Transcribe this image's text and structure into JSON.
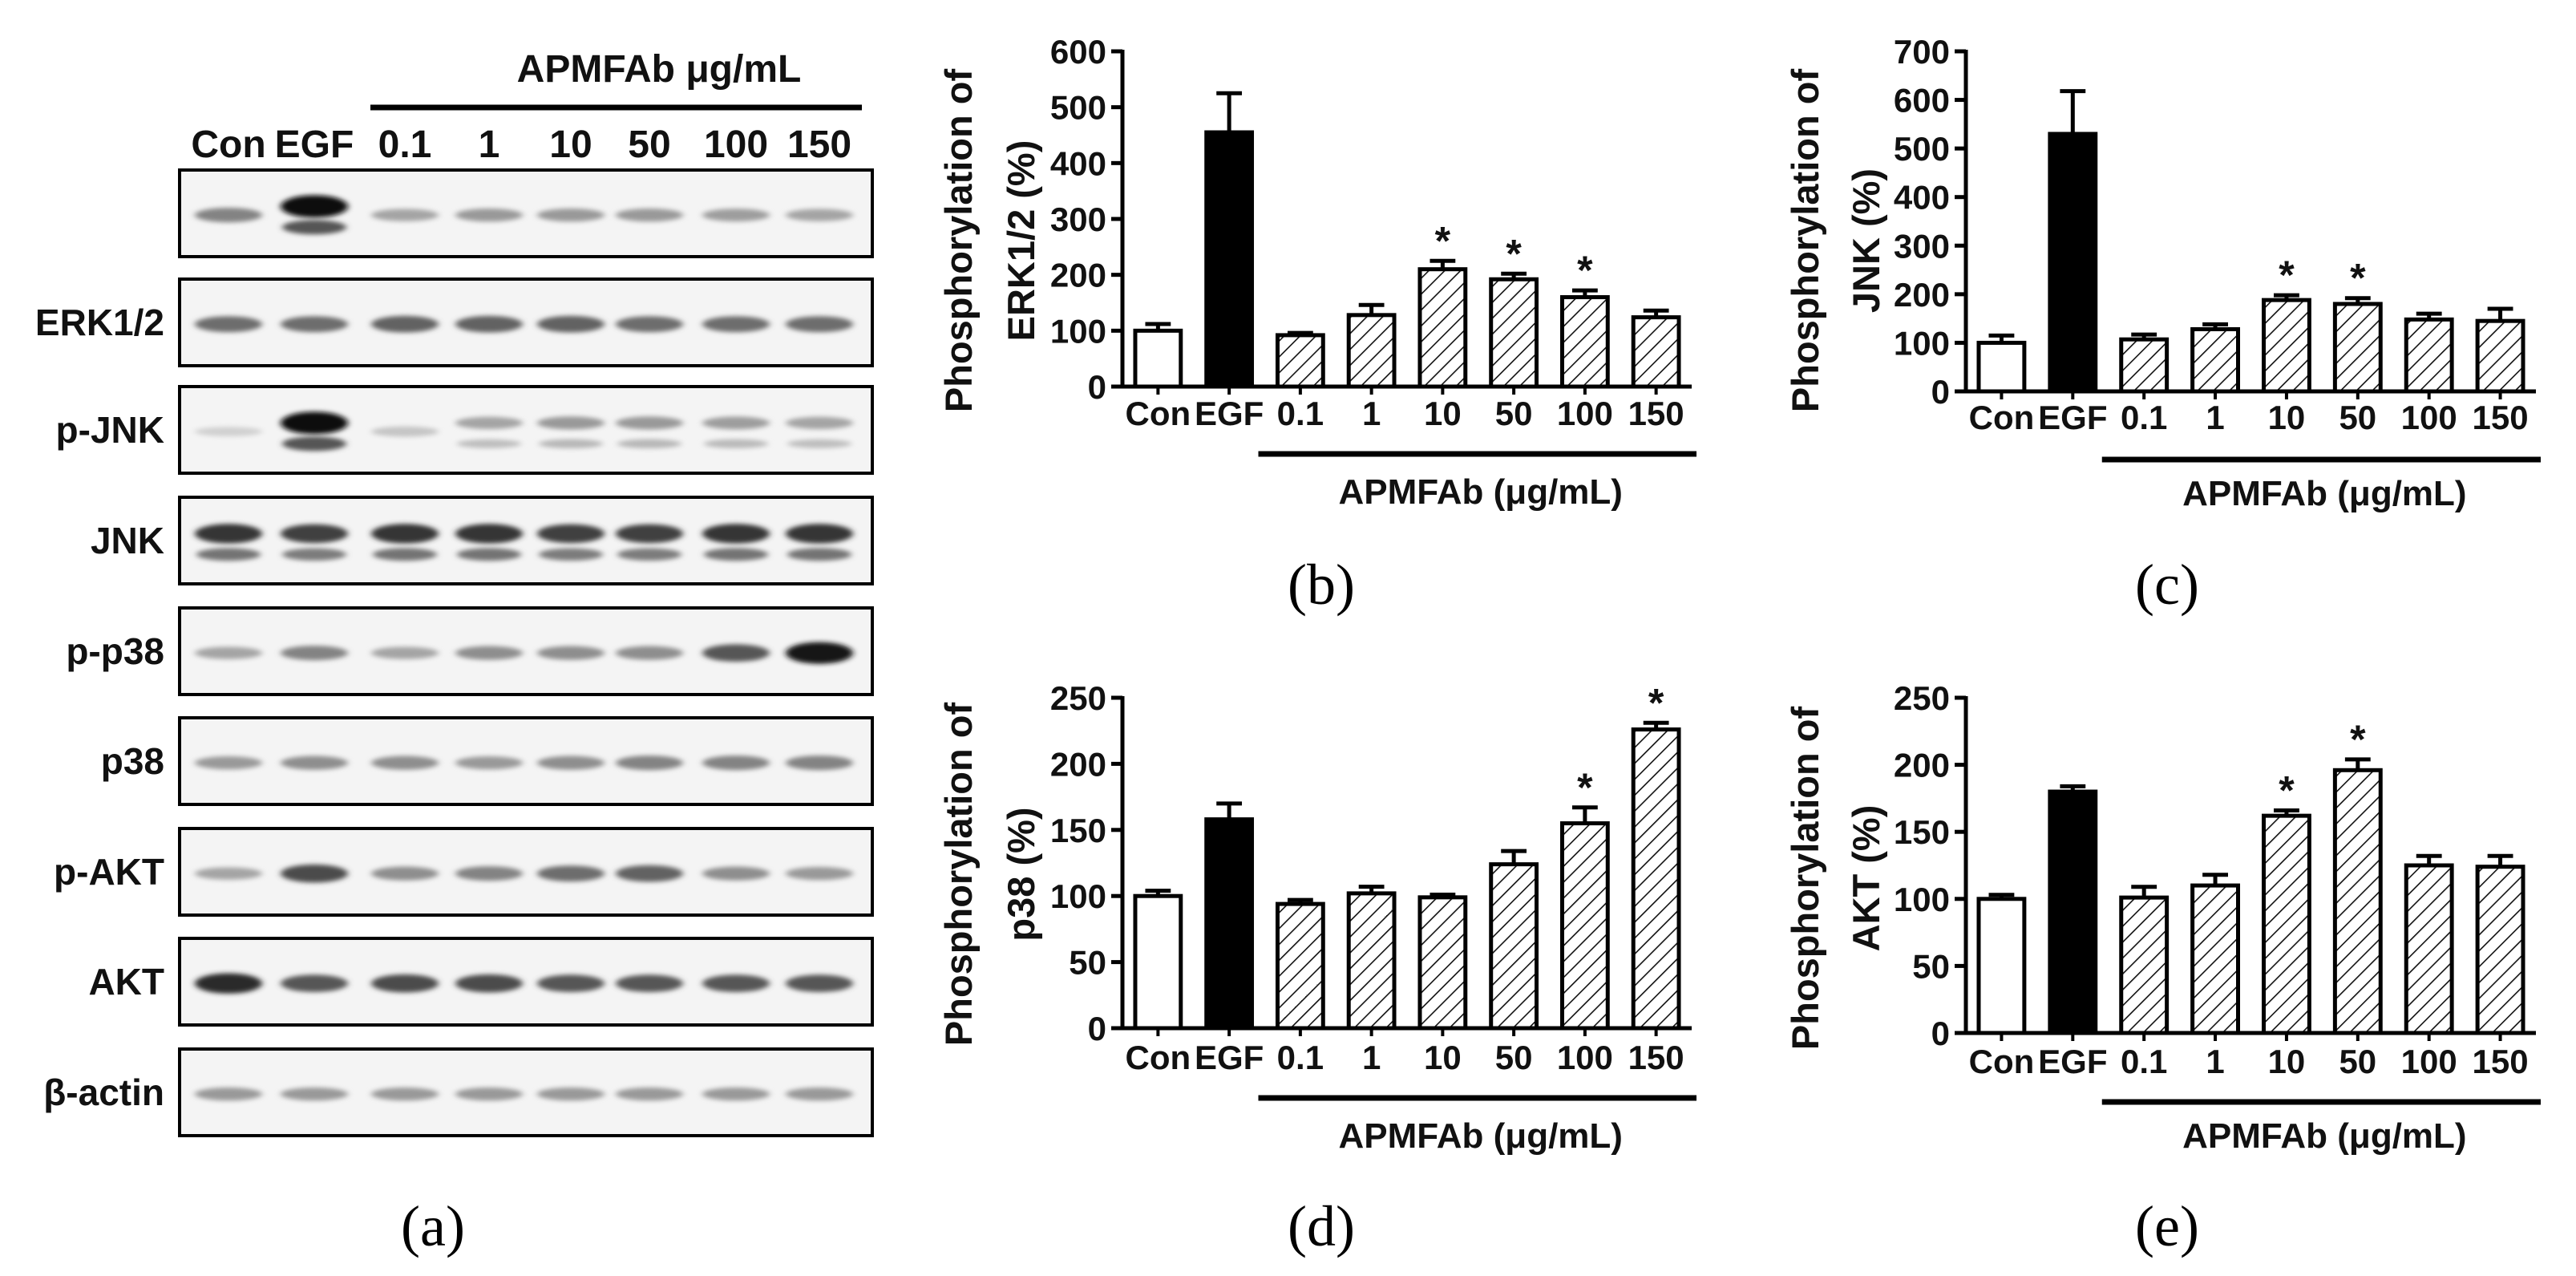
{
  "blot": {
    "header": "APMFAb μg/mL",
    "lanes": [
      "Con",
      "EGF",
      "0.1",
      "1",
      "10",
      "50",
      "100",
      "150"
    ],
    "rows": [
      {
        "label": "",
        "intensity": [
          0.45,
          1.0,
          0.3,
          0.35,
          0.35,
          0.35,
          0.33,
          0.3
        ],
        "double": [
          0,
          1,
          0,
          0,
          0,
          0,
          0,
          0
        ]
      },
      {
        "label": "ERK1/2",
        "intensity": [
          0.55,
          0.55,
          0.6,
          0.6,
          0.6,
          0.55,
          0.55,
          0.55
        ],
        "double": [
          0,
          0,
          0,
          0,
          0,
          0,
          0,
          0
        ]
      },
      {
        "label": "p-JNK",
        "intensity": [
          0.1,
          1.0,
          0.15,
          0.3,
          0.35,
          0.35,
          0.33,
          0.3
        ],
        "double": [
          0,
          1,
          0,
          1,
          1,
          1,
          1,
          1
        ]
      },
      {
        "label": "JNK",
        "intensity": [
          0.8,
          0.75,
          0.8,
          0.8,
          0.75,
          0.75,
          0.8,
          0.8
        ],
        "double": [
          1,
          1,
          1,
          1,
          1,
          1,
          1,
          1
        ]
      },
      {
        "label": "p-p38",
        "intensity": [
          0.3,
          0.45,
          0.3,
          0.4,
          0.4,
          0.4,
          0.65,
          0.95
        ],
        "double": [
          0,
          0,
          0,
          0,
          0,
          0,
          0,
          0
        ]
      },
      {
        "label": "p38",
        "intensity": [
          0.35,
          0.4,
          0.4,
          0.35,
          0.4,
          0.45,
          0.45,
          0.45
        ],
        "double": [
          0,
          0,
          0,
          0,
          0,
          0,
          0,
          0
        ]
      },
      {
        "label": "p-AKT",
        "intensity": [
          0.3,
          0.7,
          0.4,
          0.45,
          0.55,
          0.6,
          0.4,
          0.35
        ],
        "double": [
          0,
          0,
          0,
          0,
          0,
          0,
          0,
          0
        ]
      },
      {
        "label": "AKT",
        "intensity": [
          0.85,
          0.65,
          0.7,
          0.7,
          0.65,
          0.65,
          0.65,
          0.65
        ],
        "double": [
          0,
          0,
          0,
          0,
          0,
          0,
          0,
          0
        ]
      },
      {
        "label": "β-actin",
        "intensity": [
          0.35,
          0.35,
          0.35,
          0.35,
          0.35,
          0.35,
          0.35,
          0.35
        ],
        "double": [
          0,
          0,
          0,
          0,
          0,
          0,
          0,
          0
        ]
      }
    ]
  },
  "panel_labels": {
    "a": "(a)",
    "b": "(b)",
    "c": "(c)",
    "d": "(d)",
    "e": "(e)"
  },
  "chart_data": [
    {
      "id": "b",
      "type": "bar",
      "ylabel_line1": "Phosphorylation of",
      "ylabel_line2": "ERK1/2 (%)",
      "categories": [
        "Con",
        "EGF",
        "0.1",
        "1",
        "10",
        "50",
        "100",
        "150"
      ],
      "values": [
        100,
        455,
        92,
        128,
        210,
        192,
        160,
        124
      ],
      "errors": [
        12,
        70,
        4,
        18,
        15,
        10,
        12,
        12
      ],
      "significant": [
        false,
        false,
        false,
        false,
        true,
        true,
        true,
        false
      ],
      "star": "*",
      "fills": [
        "white",
        "black",
        "hatch",
        "hatch",
        "hatch",
        "hatch",
        "hatch",
        "hatch"
      ],
      "xgroup_label": "APMFAb (μg/mL)",
      "ylim": [
        0,
        600
      ],
      "yticks": [
        0,
        100,
        200,
        300,
        400,
        500,
        600
      ]
    },
    {
      "id": "c",
      "type": "bar",
      "ylabel_line1": "Phosphorylation of",
      "ylabel_line2": "JNK (%)",
      "categories": [
        "Con",
        "EGF",
        "0.1",
        "1",
        "10",
        "50",
        "100",
        "150"
      ],
      "values": [
        100,
        530,
        107,
        128,
        188,
        180,
        148,
        145
      ],
      "errors": [
        15,
        88,
        10,
        10,
        10,
        12,
        12,
        25
      ],
      "significant": [
        false,
        false,
        false,
        false,
        true,
        true,
        false,
        false
      ],
      "star": "*",
      "fills": [
        "white",
        "black",
        "hatch",
        "hatch",
        "hatch",
        "hatch",
        "hatch",
        "hatch"
      ],
      "xgroup_label": "APMFAb (μg/mL)",
      "ylim": [
        0,
        700
      ],
      "yticks": [
        0,
        100,
        200,
        300,
        400,
        500,
        600,
        700
      ]
    },
    {
      "id": "d",
      "type": "bar",
      "ylabel_line1": "Phosphorylation of",
      "ylabel_line2": "p38 (%)",
      "categories": [
        "Con",
        "EGF",
        "0.1",
        "1",
        "10",
        "50",
        "100",
        "150"
      ],
      "values": [
        100,
        158,
        94,
        102,
        99,
        124,
        155,
        226
      ],
      "errors": [
        4,
        12,
        3,
        5,
        2,
        10,
        12,
        5
      ],
      "significant": [
        false,
        false,
        false,
        false,
        false,
        false,
        true,
        true
      ],
      "star": "*",
      "fills": [
        "white",
        "black",
        "hatch",
        "hatch",
        "hatch",
        "hatch",
        "hatch",
        "hatch"
      ],
      "xgroup_label": "APMFAb (μg/mL)",
      "ylim": [
        0,
        250
      ],
      "yticks": [
        0,
        50,
        100,
        150,
        200,
        250
      ]
    },
    {
      "id": "e",
      "type": "bar",
      "ylabel_line1": "Phosphorylation of",
      "ylabel_line2": "AKT (%)",
      "categories": [
        "Con",
        "EGF",
        "0.1",
        "1",
        "10",
        "50",
        "100",
        "150"
      ],
      "values": [
        100,
        180,
        101,
        110,
        162,
        196,
        125,
        124
      ],
      "errors": [
        3,
        4,
        8,
        8,
        4,
        8,
        7,
        8
      ],
      "significant": [
        false,
        false,
        false,
        false,
        true,
        true,
        false,
        false
      ],
      "star": "*",
      "fills": [
        "white",
        "black",
        "hatch",
        "hatch",
        "hatch",
        "hatch",
        "hatch",
        "hatch"
      ],
      "xgroup_label": "APMFAb (μg/mL)",
      "ylim": [
        0,
        250
      ],
      "yticks": [
        0,
        50,
        100,
        150,
        200,
        250
      ]
    }
  ]
}
